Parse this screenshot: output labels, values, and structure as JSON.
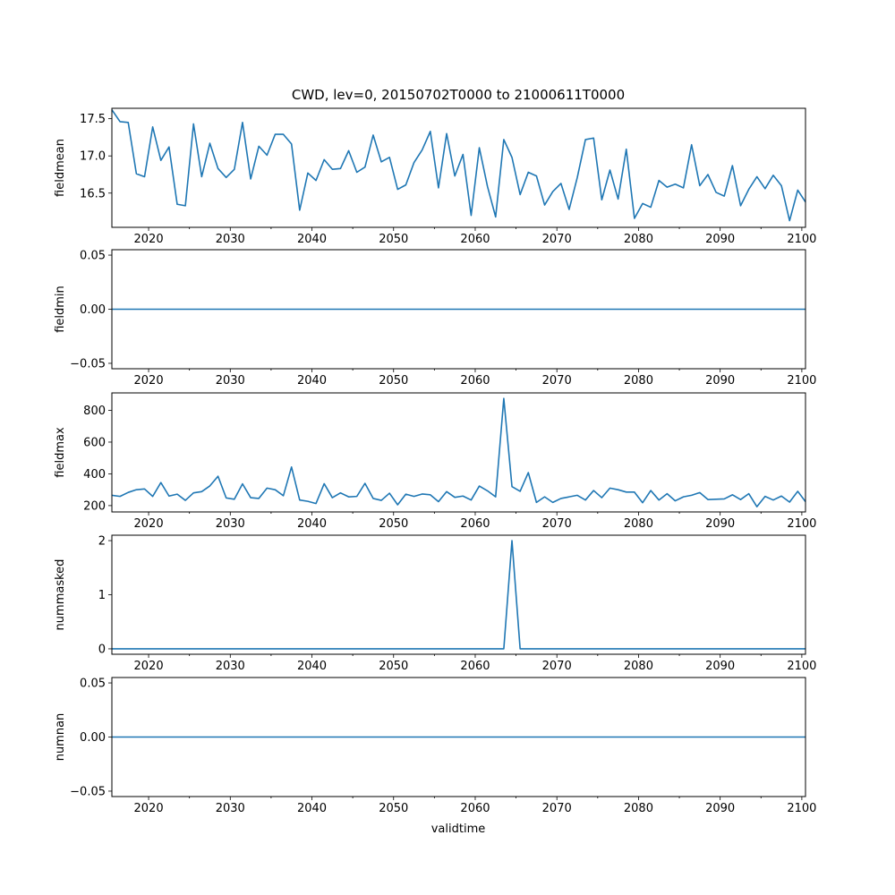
{
  "chart_data": {
    "type": "line",
    "title": "CWD, lev=0, 20150702T0000 to 21000611T0000",
    "xlabel": "validtime",
    "line_color": "#1f77b4",
    "xlim": [
      2015.5,
      2100.45
    ],
    "x_major_ticks": [
      2020,
      2030,
      2040,
      2050,
      2060,
      2070,
      2080,
      2090,
      2100
    ],
    "x_minor_ticks": [
      2025,
      2035,
      2045,
      2055,
      2065,
      2075,
      2085,
      2095
    ],
    "x": [
      2015.5,
      2016.5,
      2017.5,
      2018.5,
      2019.5,
      2020.5,
      2021.5,
      2022.5,
      2023.5,
      2024.5,
      2025.5,
      2026.5,
      2027.5,
      2028.5,
      2029.5,
      2030.5,
      2031.5,
      2032.5,
      2033.5,
      2034.5,
      2035.5,
      2036.5,
      2037.5,
      2038.5,
      2039.5,
      2040.5,
      2041.5,
      2042.5,
      2043.5,
      2044.5,
      2045.5,
      2046.5,
      2047.5,
      2048.5,
      2049.5,
      2050.5,
      2051.5,
      2052.5,
      2053.5,
      2054.5,
      2055.5,
      2056.5,
      2057.5,
      2058.5,
      2059.5,
      2060.5,
      2061.5,
      2062.5,
      2063.5,
      2064.5,
      2065.5,
      2066.5,
      2067.5,
      2068.5,
      2069.5,
      2070.5,
      2071.5,
      2072.5,
      2073.5,
      2074.5,
      2075.5,
      2076.5,
      2077.5,
      2078.5,
      2079.5,
      2080.5,
      2081.5,
      2082.5,
      2083.5,
      2084.5,
      2085.5,
      2086.5,
      2087.5,
      2088.5,
      2089.5,
      2090.5,
      2091.5,
      2092.5,
      2093.5,
      2094.5,
      2095.5,
      2096.5,
      2097.5,
      2098.5,
      2099.5,
      2100.45
    ],
    "panels": [
      {
        "name": "fieldmean",
        "ylabel": "fieldmean",
        "ylim": [
          16.04,
          17.64
        ],
        "yticks": [
          16.5,
          17.0,
          17.5
        ],
        "ytick_labels": [
          "16.5",
          "17.0",
          "17.5"
        ],
        "values": [
          17.62,
          17.46,
          17.45,
          16.76,
          16.72,
          17.39,
          16.94,
          17.12,
          16.35,
          16.33,
          17.43,
          16.72,
          17.17,
          16.83,
          16.71,
          16.82,
          17.45,
          16.69,
          17.13,
          17.01,
          17.29,
          17.29,
          17.16,
          16.27,
          16.77,
          16.67,
          16.95,
          16.82,
          16.83,
          17.07,
          16.78,
          16.85,
          17.28,
          16.92,
          16.98,
          16.55,
          16.61,
          16.91,
          17.08,
          17.33,
          16.57,
          17.3,
          16.73,
          17.02,
          16.2,
          17.11,
          16.59,
          16.18,
          17.22,
          16.98,
          16.48,
          16.78,
          16.73,
          16.34,
          16.52,
          16.63,
          16.28,
          16.71,
          17.22,
          17.24,
          16.41,
          16.81,
          16.42,
          17.09,
          16.16,
          16.36,
          16.31,
          16.67,
          16.58,
          16.62,
          16.57,
          17.15,
          16.6,
          16.75,
          16.51,
          16.46,
          16.87,
          16.33,
          16.55,
          16.72,
          16.56,
          16.74,
          16.6,
          16.13,
          16.54,
          16.38
        ]
      },
      {
        "name": "fieldmin",
        "ylabel": "fieldmin",
        "ylim": [
          -0.055,
          0.055
        ],
        "yticks": [
          -0.05,
          0.0,
          0.05
        ],
        "ytick_labels": [
          "−0.05",
          "0.00",
          "0.05"
        ],
        "values": [
          0,
          0,
          0,
          0,
          0,
          0,
          0,
          0,
          0,
          0,
          0,
          0,
          0,
          0,
          0,
          0,
          0,
          0,
          0,
          0,
          0,
          0,
          0,
          0,
          0,
          0,
          0,
          0,
          0,
          0,
          0,
          0,
          0,
          0,
          0,
          0,
          0,
          0,
          0,
          0,
          0,
          0,
          0,
          0,
          0,
          0,
          0,
          0,
          0,
          0,
          0,
          0,
          0,
          0,
          0,
          0,
          0,
          0,
          0,
          0,
          0,
          0,
          0,
          0,
          0,
          0,
          0,
          0,
          0,
          0,
          0,
          0,
          0,
          0,
          0,
          0,
          0,
          0,
          0,
          0,
          0,
          0,
          0,
          0,
          0,
          0
        ]
      },
      {
        "name": "fieldmax",
        "ylabel": "fieldmax",
        "ylim": [
          160,
          910
        ],
        "yticks": [
          200,
          400,
          600,
          800
        ],
        "ytick_labels": [
          "200",
          "400",
          "600",
          "800"
        ],
        "values": [
          265,
          258,
          283,
          300,
          305,
          258,
          345,
          260,
          272,
          233,
          280,
          288,
          324,
          385,
          248,
          240,
          337,
          250,
          245,
          310,
          300,
          262,
          443,
          235,
          227,
          213,
          338,
          250,
          280,
          255,
          258,
          340,
          245,
          233,
          278,
          205,
          272,
          258,
          273,
          268,
          225,
          288,
          252,
          260,
          235,
          323,
          293,
          255,
          875,
          320,
          290,
          408,
          220,
          255,
          220,
          245,
          255,
          265,
          235,
          295,
          250,
          310,
          300,
          285,
          285,
          218,
          295,
          235,
          275,
          230,
          255,
          265,
          282,
          238,
          240,
          242,
          268,
          238,
          275,
          193,
          258,
          235,
          260,
          222,
          290,
          225
        ]
      },
      {
        "name": "nummasked",
        "ylabel": "nummasked",
        "ylim": [
          -0.1,
          2.1
        ],
        "yticks": [
          0,
          1,
          2
        ],
        "ytick_labels": [
          "0",
          "1",
          "2"
        ],
        "values": [
          0,
          0,
          0,
          0,
          0,
          0,
          0,
          0,
          0,
          0,
          0,
          0,
          0,
          0,
          0,
          0,
          0,
          0,
          0,
          0,
          0,
          0,
          0,
          0,
          0,
          0,
          0,
          0,
          0,
          0,
          0,
          0,
          0,
          0,
          0,
          0,
          0,
          0,
          0,
          0,
          0,
          0,
          0,
          0,
          0,
          0,
          0,
          0,
          0,
          2,
          0,
          0,
          0,
          0,
          0,
          0,
          0,
          0,
          0,
          0,
          0,
          0,
          0,
          0,
          0,
          0,
          0,
          0,
          0,
          0,
          0,
          0,
          0,
          0,
          0,
          0,
          0,
          0,
          0,
          0,
          0,
          0,
          0,
          0,
          0,
          0
        ]
      },
      {
        "name": "numnan",
        "ylabel": "numnan",
        "ylim": [
          -0.055,
          0.055
        ],
        "yticks": [
          -0.05,
          0.0,
          0.05
        ],
        "ytick_labels": [
          "−0.05",
          "0.00",
          "0.05"
        ],
        "values": [
          0,
          0,
          0,
          0,
          0,
          0,
          0,
          0,
          0,
          0,
          0,
          0,
          0,
          0,
          0,
          0,
          0,
          0,
          0,
          0,
          0,
          0,
          0,
          0,
          0,
          0,
          0,
          0,
          0,
          0,
          0,
          0,
          0,
          0,
          0,
          0,
          0,
          0,
          0,
          0,
          0,
          0,
          0,
          0,
          0,
          0,
          0,
          0,
          0,
          0,
          0,
          0,
          0,
          0,
          0,
          0,
          0,
          0,
          0,
          0,
          0,
          0,
          0,
          0,
          0,
          0,
          0,
          0,
          0,
          0,
          0,
          0,
          0,
          0,
          0,
          0,
          0,
          0,
          0,
          0,
          0,
          0,
          0,
          0,
          0,
          0
        ]
      }
    ]
  }
}
